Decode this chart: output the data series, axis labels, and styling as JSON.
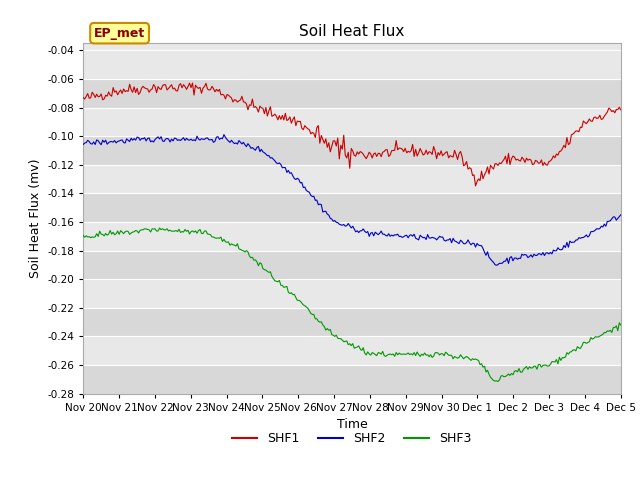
{
  "title": "Soil Heat Flux",
  "xlabel": "Time",
  "ylabel": "Soil Heat Flux (mv)",
  "annotation_text": "EP_met",
  "ylim": [
    -0.28,
    -0.035
  ],
  "yticks": [
    -0.28,
    -0.26,
    -0.24,
    -0.22,
    -0.2,
    -0.18,
    -0.16,
    -0.14,
    -0.12,
    -0.1,
    -0.08,
    -0.06,
    -0.04
  ],
  "xtick_labels": [
    "Nov 20",
    "Nov 21",
    "Nov 22",
    "Nov 23",
    "Nov 24",
    "Nov 25",
    "Nov 26",
    "Nov 27",
    "Nov 28",
    "Nov 29",
    "Nov 30",
    "Dec 1",
    "Dec 2",
    "Dec 3",
    "Dec 4",
    "Dec 5"
  ],
  "line_colors": [
    "#cc0000",
    "#0000cc",
    "#009900"
  ],
  "legend_labels": [
    "SHF1",
    "SHF2",
    "SHF3"
  ],
  "plot_bg_color": "#e8e8e8",
  "fig_bg_color": "#ffffff",
  "annotation_bg": "#ffff99",
  "annotation_border": "#cc8800",
  "annotation_text_color": "#880000",
  "grid_color": "#ffffff",
  "band_color_light": "#e8e8e8",
  "band_color_dark": "#d8d8d8"
}
